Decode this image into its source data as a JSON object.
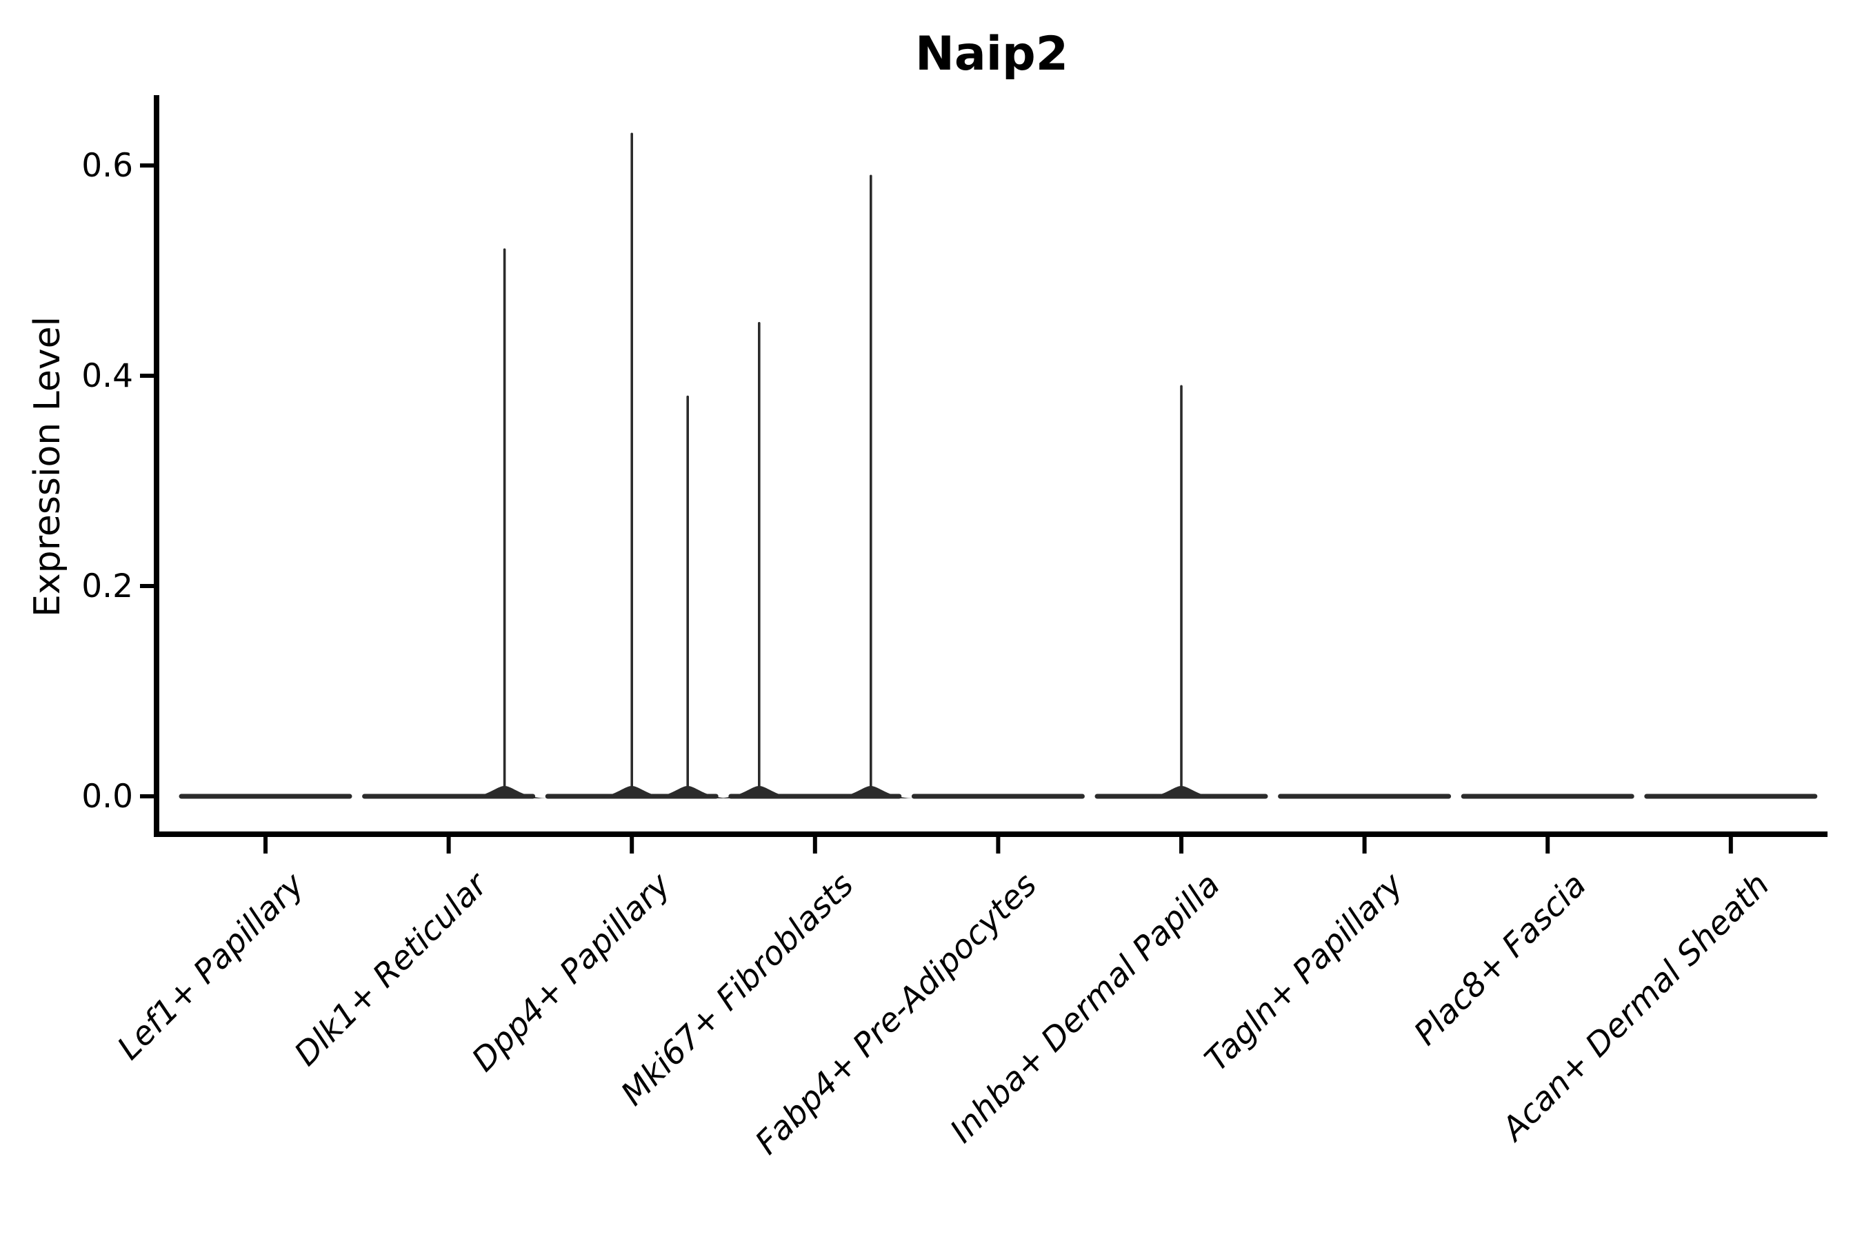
{
  "chart_data": {
    "type": "violin",
    "title": "Naip2",
    "ylabel": "Expression Level",
    "xlabel": "",
    "categories": [
      "Lef1+ Papillary",
      "Dlk1+ Reticular",
      "Dpp4+ Papillary",
      "Mki67+ Fibroblasts",
      "Fabp4+ Pre-Adipocytes",
      "Inhba+ Dermal Papilla",
      "Tagln+ Papillary",
      "Plac8+ Fascia",
      "Acan+ Dermal Sheath"
    ],
    "y_ticks": [
      {
        "value": 0.0,
        "label": "0.0"
      },
      {
        "value": 0.2,
        "label": "0.2"
      },
      {
        "value": 0.4,
        "label": "0.4"
      },
      {
        "value": 0.6,
        "label": "0.6"
      }
    ],
    "ylim": [
      -0.04,
      0.67
    ],
    "baseline_value": 0.0,
    "grid": false,
    "legend": "none",
    "violins": [
      {
        "category": "Lef1+ Papillary",
        "spikes": []
      },
      {
        "category": "Dlk1+ Reticular",
        "spikes": [
          {
            "pos": "right",
            "max": 0.52
          }
        ]
      },
      {
        "category": "Dpp4+ Papillary",
        "spikes": [
          {
            "pos": "center",
            "max": 0.63
          },
          {
            "pos": "right",
            "max": 0.38
          }
        ]
      },
      {
        "category": "Mki67+ Fibroblasts",
        "spikes": [
          {
            "pos": "left",
            "max": 0.45
          },
          {
            "pos": "right",
            "max": 0.59
          }
        ]
      },
      {
        "category": "Fabp4+ Pre-Adipocytes",
        "spikes": []
      },
      {
        "category": "Inhba+ Dermal Papilla",
        "spikes": [
          {
            "pos": "center",
            "max": 0.39
          }
        ]
      },
      {
        "category": "Tagln+ Papillary",
        "spikes": []
      },
      {
        "category": "Plac8+ Fascia",
        "spikes": []
      },
      {
        "category": "Acan+ Dermal Sheath",
        "spikes": []
      }
    ],
    "colors": {
      "violin_line": "#2b2b2b",
      "axis": "#000000",
      "text": "#000000",
      "background": "#ffffff"
    }
  }
}
